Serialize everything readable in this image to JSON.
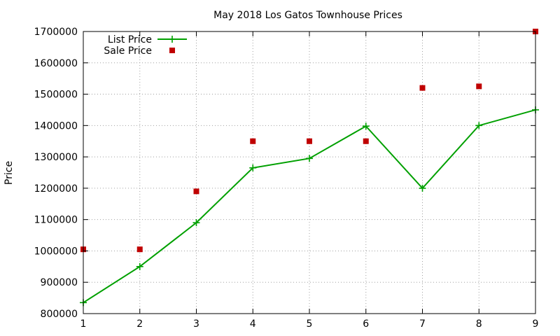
{
  "chart_data": {
    "type": "line",
    "title": "May 2018 Los Gatos Townhouse Prices",
    "xlabel": "",
    "ylabel": "Price",
    "xlim": [
      1,
      9
    ],
    "ylim": [
      800000,
      1700000
    ],
    "x_ticks": [
      1,
      2,
      3,
      4,
      5,
      6,
      7,
      8,
      9
    ],
    "y_ticks": [
      800000,
      900000,
      1000000,
      1100000,
      1200000,
      1300000,
      1400000,
      1500000,
      1600000,
      1700000
    ],
    "grid": true,
    "legend_position": "top-left",
    "series": [
      {
        "name": "List Price",
        "style": "line+cross",
        "color": "#00a000",
        "x": [
          1,
          2,
          3,
          4,
          5,
          6,
          7,
          8,
          9
        ],
        "y": [
          835000,
          950000,
          1090000,
          1265000,
          1295000,
          1398000,
          1200000,
          1400000,
          1450000
        ]
      },
      {
        "name": "Sale Price",
        "style": "square",
        "color": "#c00000",
        "x": [
          1,
          2,
          3,
          4,
          5,
          6,
          7,
          8,
          9
        ],
        "y": [
          1005000,
          1005000,
          1190000,
          1350000,
          1350000,
          1350000,
          1520000,
          1525000,
          1700000
        ]
      }
    ]
  }
}
